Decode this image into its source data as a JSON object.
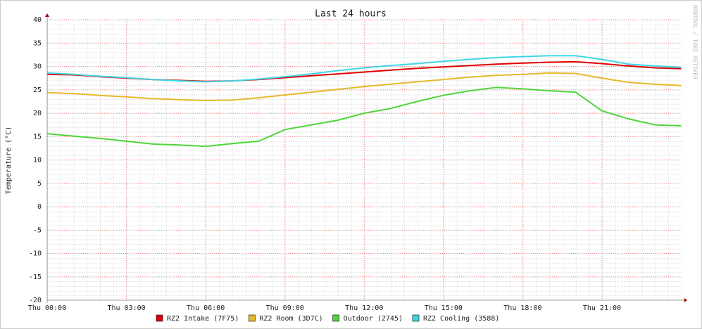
{
  "chart_data": {
    "type": "line",
    "title": "Last 24 hours",
    "y_label": "Temperature (°C)",
    "watermark": "RRDTOOL / TOBI OETIKER",
    "x": [
      0,
      1,
      2,
      3,
      4,
      5,
      6,
      7,
      8,
      9,
      10,
      11,
      12,
      13,
      14,
      15,
      16,
      17,
      18,
      19,
      20,
      21,
      22,
      23,
      24
    ],
    "xlim": [
      0,
      24
    ],
    "xticks": [
      {
        "value": 0,
        "label": "Thu 00:00"
      },
      {
        "value": 3,
        "label": "Thu 03:00"
      },
      {
        "value": 6,
        "label": "Thu 06:00"
      },
      {
        "value": 9,
        "label": "Thu 09:00"
      },
      {
        "value": 12,
        "label": "Thu 12:00"
      },
      {
        "value": 15,
        "label": "Thu 15:00"
      },
      {
        "value": 18,
        "label": "Thu 18:00"
      },
      {
        "value": 21,
        "label": "Thu 21:00"
      }
    ],
    "ylim": [
      -20,
      40
    ],
    "yticks": [
      40,
      35,
      30,
      25,
      20,
      15,
      10,
      5,
      0,
      -5,
      -10,
      -15,
      -20
    ],
    "grid": true,
    "legend": "bottom",
    "series": [
      {
        "name": "RZ2 Intake (7F75)",
        "color": "#e00000",
        "values": [
          28.3,
          28.2,
          27.8,
          27.5,
          27.2,
          27.0,
          26.8,
          26.9,
          27.2,
          27.6,
          28.0,
          28.4,
          28.8,
          29.2,
          29.6,
          29.9,
          30.2,
          30.5,
          30.7,
          30.9,
          31.0,
          30.6,
          30.1,
          29.7,
          29.5
        ]
      },
      {
        "name": "RZ2 Room (3D7C)",
        "color": "#e4b92b",
        "values": [
          24.4,
          24.2,
          23.8,
          23.5,
          23.1,
          22.9,
          22.7,
          22.8,
          23.3,
          23.9,
          24.5,
          25.1,
          25.7,
          26.2,
          26.7,
          27.2,
          27.7,
          28.1,
          28.3,
          28.6,
          28.5,
          27.5,
          26.6,
          26.2,
          25.9
        ]
      },
      {
        "name": "Outdoor (2745)",
        "color": "#4ed63a",
        "values": [
          15.6,
          15.1,
          14.6,
          14.0,
          13.4,
          13.2,
          12.9,
          13.5,
          14.0,
          16.5,
          17.5,
          18.5,
          20.0,
          21.0,
          22.5,
          23.8,
          24.8,
          25.5,
          25.2,
          24.8,
          24.5,
          20.5,
          18.8,
          17.5,
          17.3
        ]
      },
      {
        "name": "RZ2 Cooling (3588)",
        "color": "#3fd6e6",
        "values": [
          28.6,
          28.3,
          27.9,
          27.6,
          27.2,
          26.9,
          26.7,
          26.9,
          27.3,
          27.8,
          28.4,
          29.1,
          29.7,
          30.2,
          30.6,
          31.1,
          31.5,
          31.9,
          32.1,
          32.3,
          32.3,
          31.5,
          30.5,
          30.1,
          29.8
        ]
      }
    ]
  }
}
